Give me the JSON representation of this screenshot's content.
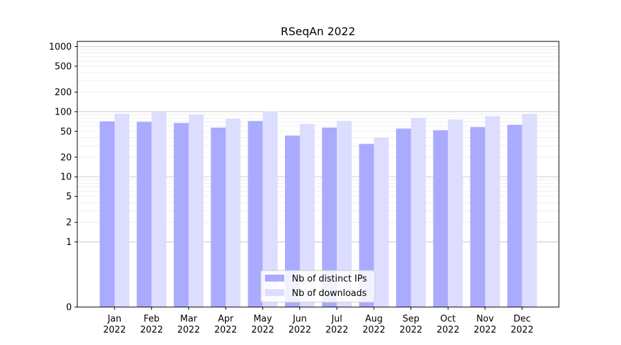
{
  "chart_data": {
    "type": "bar",
    "title": "RSeqAn 2022",
    "xlabel": "",
    "ylabel": "",
    "y_scale": "symlog",
    "y_ticks": [
      "0",
      "1",
      "2",
      "5",
      "10",
      "20",
      "50",
      "100",
      "200",
      "500",
      "1000"
    ],
    "ylim": [
      0,
      1200
    ],
    "grid": "horizontal",
    "legend_position": "bottom-center",
    "categories": [
      "Jan\n2022",
      "Feb\n2022",
      "Mar\n2022",
      "Apr\n2022",
      "May\n2022",
      "Jun\n2022",
      "Jul\n2022",
      "Aug\n2022",
      "Sep\n2022",
      "Oct\n2022",
      "Nov\n2022",
      "Dec\n2022"
    ],
    "series": [
      {
        "name": "Nb of distinct IPs",
        "color": "#aaaaff",
        "values": [
          71,
          70,
          67,
          57,
          72,
          43,
          57,
          32,
          55,
          52,
          58,
          63
        ]
      },
      {
        "name": "Nb of downloads",
        "color": "#ddddff",
        "values": [
          93,
          100,
          91,
          78,
          101,
          65,
          72,
          40,
          80,
          76,
          85,
          93
        ]
      }
    ]
  }
}
